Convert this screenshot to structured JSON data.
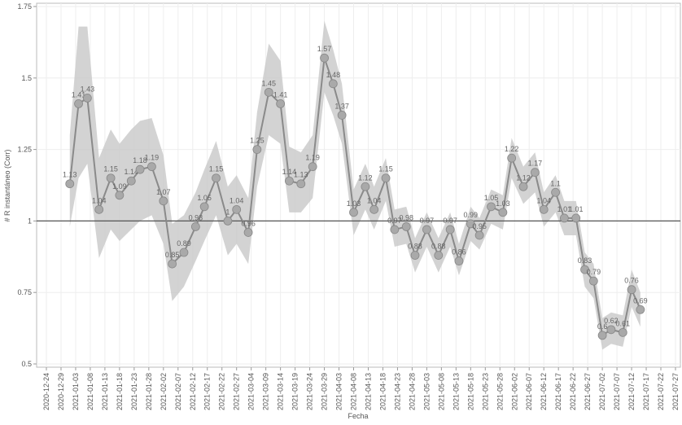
{
  "chart_data": {
    "type": "line",
    "x_label": "Fecha",
    "y_label": "# R instantáneo (Corr)",
    "x": [
      "2021-01-01",
      "2021-01-04",
      "2021-01-07",
      "2021-01-11",
      "2021-01-15",
      "2021-01-18",
      "2021-01-22",
      "2021-01-25",
      "2021-01-29",
      "2021-02-02",
      "2021-02-05",
      "2021-02-09",
      "2021-02-13",
      "2021-02-16",
      "2021-02-20",
      "2021-02-24",
      "2021-02-27",
      "2021-03-03",
      "2021-03-06",
      "2021-03-10",
      "2021-03-14",
      "2021-03-17",
      "2021-03-21",
      "2021-03-25",
      "2021-03-29",
      "2021-04-01",
      "2021-04-04",
      "2021-04-08",
      "2021-04-12",
      "2021-04-15",
      "2021-04-19",
      "2021-04-22",
      "2021-04-26",
      "2021-04-29",
      "2021-05-03",
      "2021-05-07",
      "2021-05-11",
      "2021-05-14",
      "2021-05-18",
      "2021-05-21",
      "2021-05-25",
      "2021-05-29",
      "2021-06-01",
      "2021-06-05",
      "2021-06-09",
      "2021-06-12",
      "2021-06-16",
      "2021-06-19",
      "2021-06-23",
      "2021-06-26",
      "2021-06-29",
      "2021-07-02",
      "2021-07-05",
      "2021-07-09",
      "2021-07-12",
      "2021-07-15"
    ],
    "values": [
      1.13,
      1.41,
      1.43,
      1.04,
      1.15,
      1.09,
      1.14,
      1.18,
      1.19,
      1.07,
      0.85,
      0.89,
      0.98,
      1.05,
      1.15,
      1.0,
      1.04,
      0.96,
      1.25,
      1.45,
      1.41,
      1.14,
      1.13,
      1.19,
      1.57,
      1.48,
      1.37,
      1.03,
      1.12,
      1.04,
      1.15,
      0.97,
      0.98,
      0.88,
      0.97,
      0.88,
      0.97,
      0.86,
      0.99,
      0.95,
      1.05,
      1.03,
      1.22,
      1.12,
      1.17,
      1.04,
      1.1,
      1.01,
      1.01,
      0.83,
      0.79,
      0.6,
      0.62,
      0.61,
      0.76,
      0.69
    ],
    "lower": [
      0.98,
      1.15,
      1.2,
      0.87,
      0.97,
      0.93,
      0.97,
      1.0,
      1.02,
      0.92,
      0.72,
      0.77,
      0.86,
      0.93,
      1.02,
      0.88,
      0.92,
      0.85,
      1.12,
      1.3,
      1.27,
      1.03,
      1.03,
      1.08,
      1.45,
      1.37,
      1.27,
      0.95,
      1.04,
      0.97,
      1.07,
      0.91,
      0.92,
      0.82,
      0.91,
      0.82,
      0.91,
      0.81,
      0.93,
      0.9,
      0.99,
      0.97,
      1.15,
      1.06,
      1.1,
      0.98,
      1.03,
      0.95,
      0.95,
      0.77,
      0.73,
      0.55,
      0.57,
      0.56,
      0.7,
      0.63
    ],
    "upper": [
      1.3,
      1.68,
      1.68,
      1.22,
      1.32,
      1.27,
      1.32,
      1.35,
      1.36,
      1.23,
      0.99,
      1.02,
      1.1,
      1.18,
      1.28,
      1.12,
      1.16,
      1.08,
      1.38,
      1.62,
      1.56,
      1.26,
      1.24,
      1.3,
      1.7,
      1.6,
      1.48,
      1.11,
      1.2,
      1.12,
      1.22,
      1.04,
      1.05,
      0.94,
      1.03,
      0.94,
      1.03,
      0.92,
      1.05,
      1.01,
      1.11,
      1.09,
      1.29,
      1.19,
      1.24,
      1.1,
      1.16,
      1.07,
      1.07,
      0.89,
      0.85,
      0.66,
      0.68,
      0.67,
      0.83,
      0.75
    ],
    "xlim": [
      "2020-12-24",
      "2021-07-27"
    ],
    "xticks": [
      "2020-12-24",
      "2020-12-29",
      "2021-01-03",
      "2021-01-08",
      "2021-01-13",
      "2021-01-18",
      "2021-01-23",
      "2021-01-28",
      "2021-02-02",
      "2021-02-07",
      "2021-02-12",
      "2021-02-17",
      "2021-02-22",
      "2021-02-27",
      "2021-03-04",
      "2021-03-09",
      "2021-03-14",
      "2021-03-19",
      "2021-03-24",
      "2021-03-29",
      "2021-04-03",
      "2021-04-08",
      "2021-04-13",
      "2021-04-18",
      "2021-04-23",
      "2021-04-28",
      "2021-05-03",
      "2021-05-08",
      "2021-05-13",
      "2021-05-18",
      "2021-05-23",
      "2021-05-28",
      "2021-06-02",
      "2021-06-07",
      "2021-06-12",
      "2021-06-17",
      "2021-06-22",
      "2021-06-27",
      "2021-07-02",
      "2021-07-07",
      "2021-07-12",
      "2021-07-17",
      "2021-07-22",
      "2021-07-27"
    ],
    "ylim": [
      0.5,
      1.75
    ],
    "yticks": [
      0.5,
      0.75,
      1,
      1.25,
      1.5,
      1.75
    ],
    "hline": 1,
    "grid": true,
    "color": "#8a8a8a",
    "band_color": "#c8c8c8",
    "point_color": "#a9a9a9"
  }
}
